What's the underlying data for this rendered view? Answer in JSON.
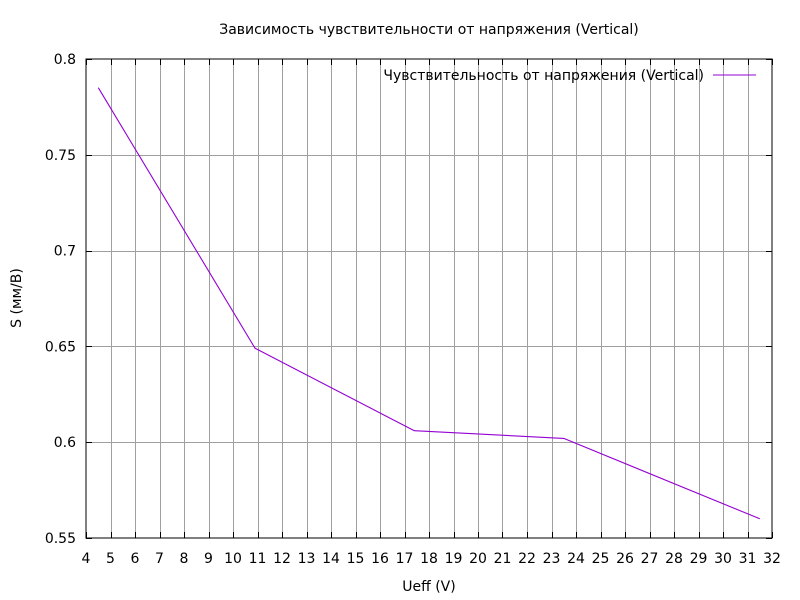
{
  "chart_data": {
    "type": "line",
    "title": "Зависимость чувствительности от напряжения (Vertical)",
    "xlabel": "Ueff (V)",
    "ylabel": "S (мм/В)",
    "xlim": [
      4,
      32
    ],
    "ylim": [
      0.55,
      0.8
    ],
    "x_ticks": [
      "4",
      "5",
      "6",
      "7",
      "8",
      "9",
      "10",
      "11",
      "12",
      "13",
      "14",
      "15",
      "16",
      "17",
      "18",
      "19",
      "20",
      "21",
      "22",
      "23",
      "24",
      "25",
      "26",
      "27",
      "28",
      "29",
      "30",
      "31",
      "32"
    ],
    "y_ticks": [
      "0.55",
      "0.6",
      "0.65",
      "0.7",
      "0.75",
      "0.8"
    ],
    "grid": true,
    "legend_position": "top-right",
    "series": [
      {
        "name": "Чувствительность от напряжения (Vertical)",
        "color": "#9400d3",
        "x": [
          4.5,
          10.9,
          17.4,
          23.5,
          31.5
        ],
        "y": [
          0.785,
          0.649,
          0.606,
          0.602,
          0.56
        ]
      }
    ]
  }
}
